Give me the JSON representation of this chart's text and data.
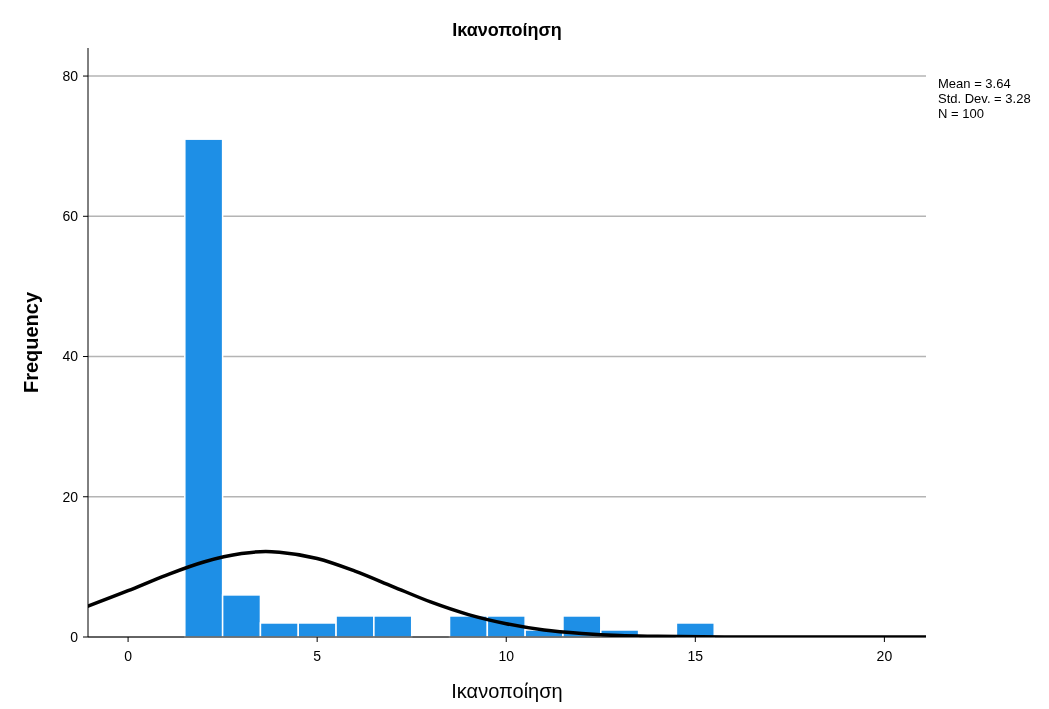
{
  "chart_data": {
    "type": "histogram",
    "title": "Ικανοποίηση",
    "xlabel": "Ικανοποίηση",
    "ylabel": "Frequency",
    "bins": [
      1.5,
      2.5,
      3.5,
      4.5,
      5.5,
      6.5,
      7.5,
      8.5,
      9.5,
      10.5,
      11.5,
      12.5,
      13.5,
      14.5,
      15.5
    ],
    "values": [
      71,
      6,
      2,
      2,
      3,
      3,
      0,
      3,
      3,
      1,
      3,
      1,
      0,
      2
    ],
    "color": "#1e8fe6",
    "series": [
      {
        "type": "line",
        "color": "#000000",
        "x": [
          -1.06,
          0,
          1,
          2,
          3,
          3.64,
          4,
          5,
          6,
          7,
          8,
          9,
          10,
          11,
          12,
          13,
          14,
          16,
          18,
          21.1
        ],
        "values": [
          4.4,
          6.6,
          8.8,
          10.7,
          11.9,
          12.2,
          12.1,
          11.2,
          9.4,
          7.2,
          5,
          3.2,
          1.9,
          1,
          0.5,
          0.2,
          0.1,
          0,
          0,
          0
        ]
      }
    ],
    "xlim": [
      -1.06,
      21.1
    ],
    "ylim": [
      0,
      84
    ],
    "xticks": [
      0,
      5,
      10,
      15,
      20
    ],
    "yticks": [
      0,
      20,
      40,
      60,
      80
    ],
    "grid": "y",
    "annotations": [
      "Mean = 3.64",
      "Std. Dev. = 3.28",
      "N = 100"
    ]
  }
}
